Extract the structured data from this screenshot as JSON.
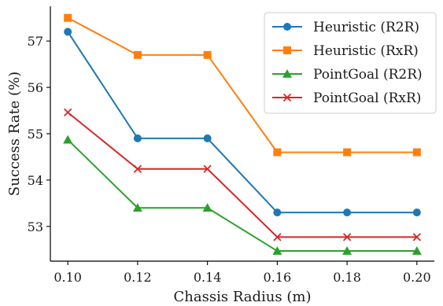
{
  "chart_data": {
    "type": "line",
    "xlabel": "Chassis Radius (m)",
    "ylabel": "Success Rate (%)",
    "x": [
      0.1,
      0.12,
      0.14,
      0.16,
      0.18,
      0.2
    ],
    "x_tick_labels": [
      "0.10",
      "0.12",
      "0.14",
      "0.16",
      "0.18",
      "0.20"
    ],
    "y_ticks": [
      53,
      54,
      55,
      56,
      57
    ],
    "y_tick_labels": [
      "53",
      "54",
      "55",
      "56",
      "57"
    ],
    "xlim": [
      0.095,
      0.205
    ],
    "ylim": [
      52.25,
      57.75
    ],
    "grid": false,
    "legend_position": "top-right",
    "series": [
      {
        "name": "Heuristic (R2R)",
        "color": "#1f77b4",
        "marker": "circle",
        "values": [
          57.2,
          54.9,
          54.9,
          53.3,
          53.3,
          53.3
        ]
      },
      {
        "name": "Heuristic (RxR)",
        "color": "#ff7f0e",
        "marker": "square",
        "values": [
          57.5,
          56.7,
          56.7,
          54.6,
          54.6,
          54.6
        ]
      },
      {
        "name": "PointGoal (R2R)",
        "color": "#2ca02c",
        "marker": "triangle",
        "values": [
          54.87,
          53.4,
          53.4,
          52.47,
          52.47,
          52.47
        ]
      },
      {
        "name": "PointGoal (RxR)",
        "color": "#d62728",
        "marker": "x",
        "values": [
          55.46,
          54.24,
          54.24,
          52.77,
          52.77,
          52.77
        ]
      }
    ]
  }
}
